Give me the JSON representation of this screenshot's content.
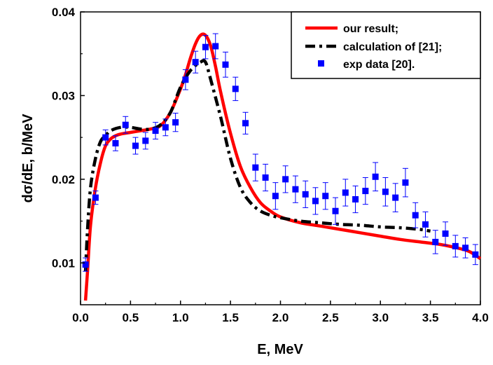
{
  "chart_data": {
    "type": "line",
    "xlabel": "E, MeV",
    "ylabel": "dσ/dE, b/MeV",
    "xlim": [
      0.0,
      4.0
    ],
    "ylim": [
      0.005,
      0.04
    ],
    "xticks": [
      "0.0",
      "0.5",
      "1.0",
      "1.5",
      "2.0",
      "2.5",
      "3.0",
      "3.5",
      "4.0"
    ],
    "yticks": [
      "0.01",
      "0.02",
      "0.03",
      "0.04"
    ],
    "xtick_values": [
      0.0,
      0.5,
      1.0,
      1.5,
      2.0,
      2.5,
      3.0,
      3.5,
      4.0
    ],
    "ytick_values": [
      0.01,
      0.02,
      0.03,
      0.04
    ],
    "legend_position": "top-right",
    "series": [
      {
        "name": "our result;",
        "style": "solid",
        "color": "#ff0000",
        "x": [
          0.05,
          0.07,
          0.1,
          0.15,
          0.2,
          0.25,
          0.3,
          0.35,
          0.4,
          0.5,
          0.6,
          0.7,
          0.8,
          0.9,
          1.0,
          1.05,
          1.1,
          1.15,
          1.2,
          1.25,
          1.3,
          1.35,
          1.4,
          1.5,
          1.6,
          1.7,
          1.8,
          1.9,
          2.0,
          2.2,
          2.4,
          2.6,
          2.8,
          3.0,
          3.2,
          3.4,
          3.6,
          3.8,
          3.9,
          4.0
        ],
        "y": [
          0.0055,
          0.009,
          0.0145,
          0.019,
          0.022,
          0.024,
          0.0248,
          0.0252,
          0.0254,
          0.0256,
          0.0258,
          0.026,
          0.0264,
          0.028,
          0.0308,
          0.0325,
          0.0345,
          0.0362,
          0.0372,
          0.0372,
          0.036,
          0.0335,
          0.0305,
          0.0255,
          0.0215,
          0.019,
          0.0172,
          0.0162,
          0.0155,
          0.0148,
          0.0144,
          0.014,
          0.0136,
          0.0132,
          0.0128,
          0.0125,
          0.0122,
          0.0117,
          0.0113,
          0.0105
        ]
      },
      {
        "name": "calculation of [21];",
        "style": "dash-dot",
        "color": "#000000",
        "x": [
          0.05,
          0.07,
          0.1,
          0.15,
          0.2,
          0.25,
          0.3,
          0.4,
          0.5,
          0.6,
          0.7,
          0.8,
          0.9,
          1.0,
          1.1,
          1.2,
          1.25,
          1.3,
          1.4,
          1.5,
          1.6,
          1.7,
          1.8,
          1.9,
          2.0,
          2.2,
          2.4,
          2.6,
          2.8,
          3.0,
          3.2,
          3.4,
          3.5
        ],
        "y": [
          0.009,
          0.014,
          0.019,
          0.0225,
          0.0245,
          0.0252,
          0.0258,
          0.0262,
          0.0262,
          0.026,
          0.026,
          0.0265,
          0.028,
          0.031,
          0.033,
          0.034,
          0.034,
          0.032,
          0.0275,
          0.0225,
          0.019,
          0.0172,
          0.0162,
          0.0157,
          0.0154,
          0.015,
          0.0148,
          0.0146,
          0.0145,
          0.0143,
          0.0142,
          0.014,
          0.0138
        ]
      },
      {
        "name": "exp data [20].",
        "style": "markers",
        "color": "#0000ff",
        "x": [
          0.05,
          0.15,
          0.25,
          0.35,
          0.45,
          0.55,
          0.65,
          0.75,
          0.85,
          0.95,
          1.05,
          1.15,
          1.25,
          1.35,
          1.45,
          1.55,
          1.65,
          1.75,
          1.85,
          1.95,
          2.05,
          2.15,
          2.25,
          2.35,
          2.45,
          2.55,
          2.65,
          2.75,
          2.85,
          2.95,
          3.05,
          3.15,
          3.25,
          3.35,
          3.45,
          3.55,
          3.65,
          3.75,
          3.85,
          3.95
        ],
        "y": [
          0.0098,
          0.0178,
          0.025,
          0.0243,
          0.0265,
          0.024,
          0.0246,
          0.0258,
          0.0262,
          0.0268,
          0.0319,
          0.034,
          0.0358,
          0.0359,
          0.0337,
          0.0308,
          0.0267,
          0.0214,
          0.0202,
          0.018,
          0.02,
          0.0188,
          0.0182,
          0.0174,
          0.018,
          0.0162,
          0.0184,
          0.0176,
          0.0186,
          0.0203,
          0.0185,
          0.0178,
          0.0196,
          0.0157,
          0.0146,
          0.0125,
          0.0135,
          0.012,
          0.0118,
          0.011
        ],
        "err": [
          0.0008,
          0.0008,
          0.0009,
          0.0009,
          0.001,
          0.001,
          0.001,
          0.001,
          0.001,
          0.0011,
          0.0012,
          0.0013,
          0.0014,
          0.0015,
          0.0015,
          0.0014,
          0.0013,
          0.0016,
          0.0016,
          0.0016,
          0.0016,
          0.0016,
          0.0016,
          0.0016,
          0.0016,
          0.0016,
          0.0016,
          0.0016,
          0.0016,
          0.0017,
          0.0017,
          0.0017,
          0.0017,
          0.0015,
          0.0015,
          0.0014,
          0.0014,
          0.0013,
          0.0012,
          0.0012
        ]
      }
    ]
  }
}
